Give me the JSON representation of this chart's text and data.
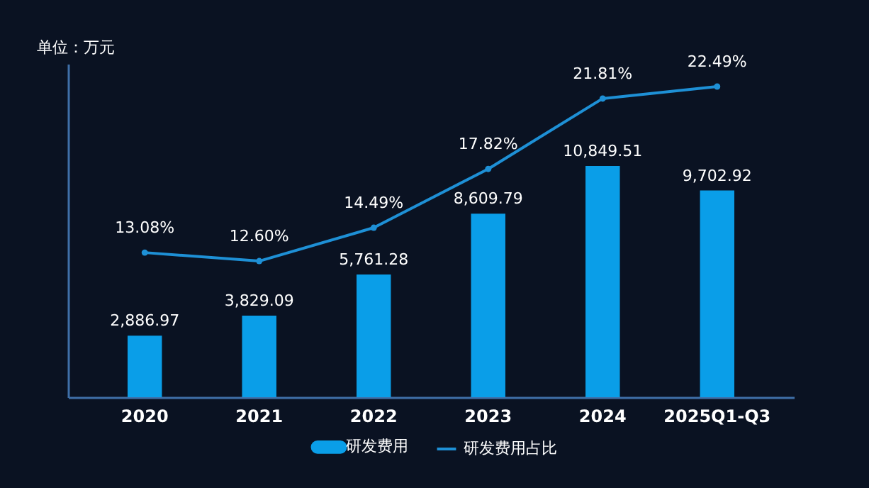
{
  "chart_data": {
    "type": "bar",
    "annotations": [
      "单位：万元"
    ],
    "categories": [
      "2020",
      "2021",
      "2022",
      "2023",
      "2024",
      "2025Q1-Q3"
    ],
    "series": [
      {
        "name": "研发费用",
        "color": "#0a9ee8",
        "values": [
          2886.97,
          3829.09,
          5761.28,
          8609.79,
          10849.51,
          9702.92
        ],
        "value_labels": [
          "2,886.97",
          "3,829.09",
          "5,761.28",
          "8,609.79",
          "10,849.51",
          "9,702.92"
        ]
      },
      {
        "name": "研发费用占比",
        "type": "line",
        "axis": "y2",
        "color": "#1e90d6",
        "values": [
          13.08,
          12.6,
          14.49,
          17.82,
          21.81,
          22.49
        ],
        "value_labels": [
          "13.08%",
          "12.60%",
          "14.49%",
          "17.82%",
          "21.81%",
          "22.49%"
        ]
      }
    ],
    "legend": "bottom",
    "marker": "circle",
    "tick_labels": "x"
  }
}
